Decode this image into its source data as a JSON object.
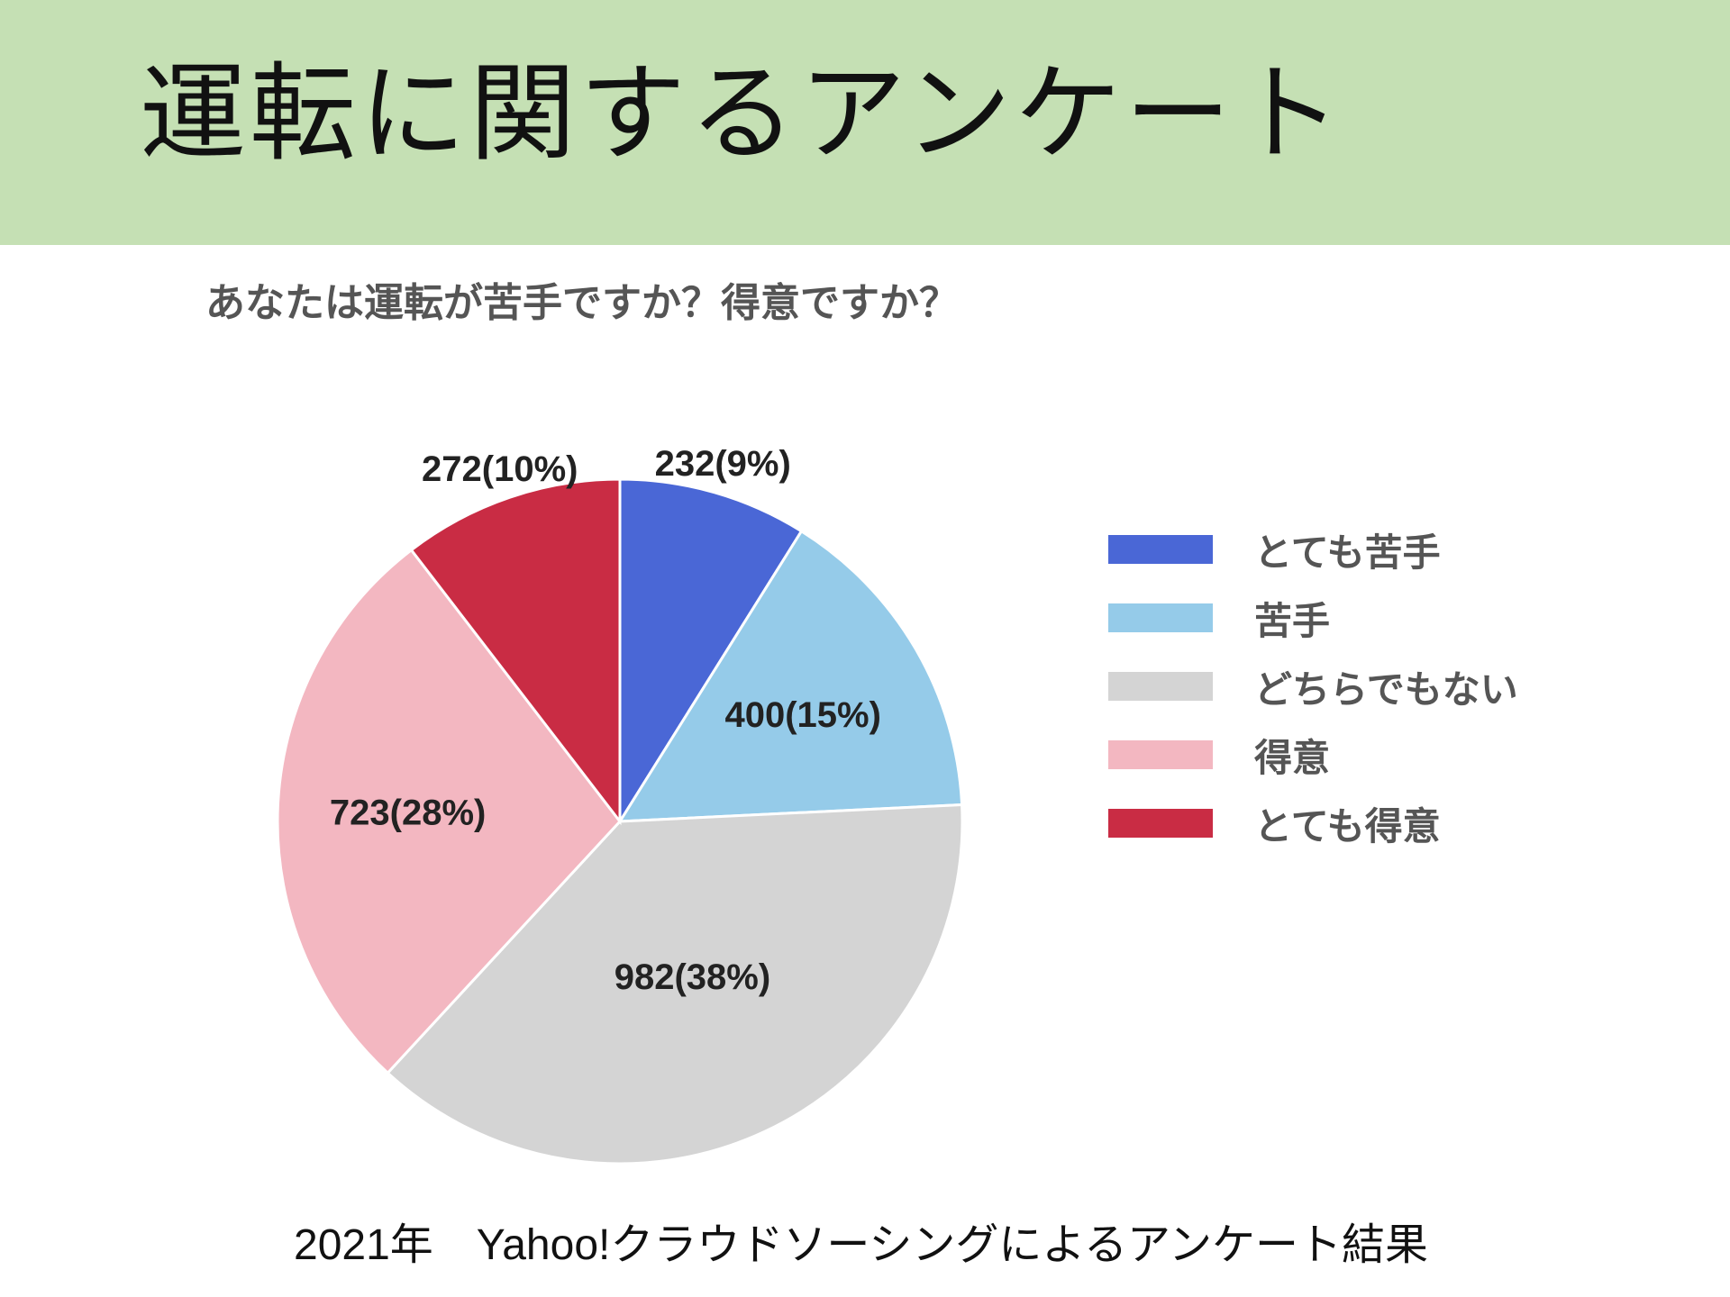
{
  "slide": {
    "title": "運転に関するアンケート",
    "header_color": "#c5e0b4",
    "caption": "2021年　Yahoo!クラウドソーシングによるアンケート結果"
  },
  "chart_data": {
    "type": "pie",
    "title": "あなたは運転が苦手ですか？得意ですか？",
    "legend_position": "right",
    "slices": [
      {
        "name": "とても苦手",
        "value": 232,
        "percent": 9,
        "label": "232(9%)",
        "color": "#4a67d6"
      },
      {
        "name": "苦手",
        "value": 400,
        "percent": 15,
        "label": "400(15%)",
        "color": "#95cbe9"
      },
      {
        "name": "どちらでもない",
        "value": 982,
        "percent": 38,
        "label": "982(38%)",
        "color": "#d4d4d4"
      },
      {
        "name": "得意",
        "value": 723,
        "percent": 28,
        "label": "723(28%)",
        "color": "#f3b7c1"
      },
      {
        "name": "とても得意",
        "value": 272,
        "percent": 10,
        "label": "272(10%)",
        "color": "#c92c44"
      }
    ]
  }
}
